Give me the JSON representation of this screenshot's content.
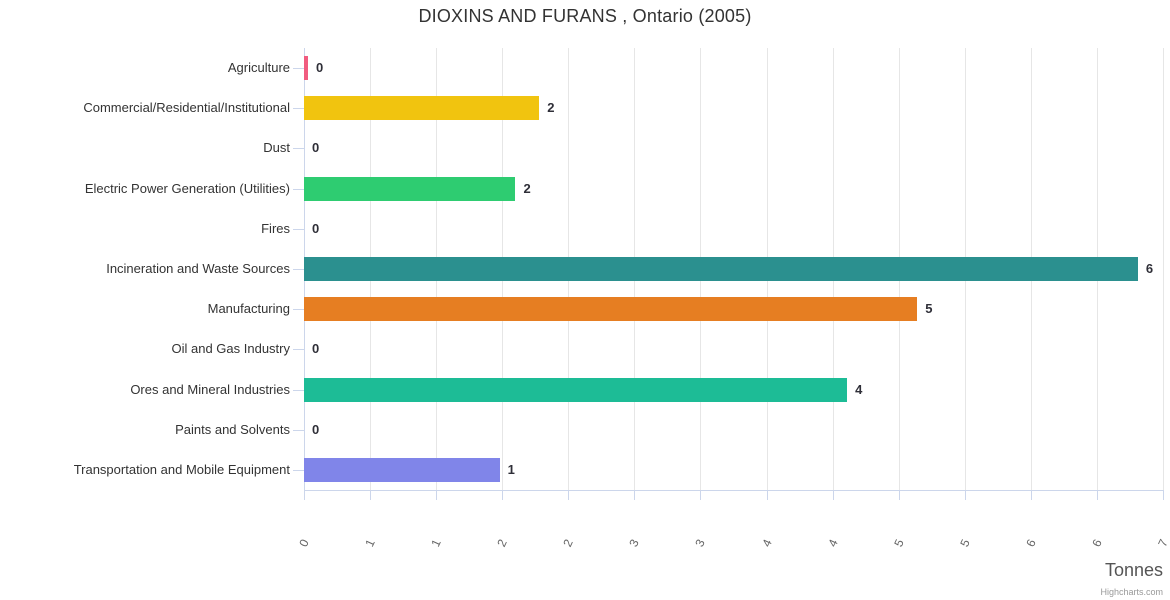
{
  "title": "DIOXINS AND FURANS , Ontario (2005)",
  "axis": {
    "x_title": "Tonnes"
  },
  "credits": "Highcharts.com",
  "chart_data": {
    "type": "bar",
    "orientation": "horizontal",
    "title": "DIOXINS AND FURANS , Ontario (2005)",
    "xlabel": "Tonnes",
    "ylabel": "",
    "xlim": [
      0,
      6.5
    ],
    "tick_interval": 0.5,
    "grid": true,
    "legend": false,
    "categories": [
      "Agriculture",
      "Commercial/Residential/Institutional",
      "Dust",
      "Electric Power Generation (Utilities)",
      "Fires",
      "Incineration and Waste Sources",
      "Manufacturing",
      "Oil and Gas Industry",
      "Ores and Mineral Industries",
      "Paints and Solvents",
      "Transportation and Mobile Equipment"
    ],
    "values": [
      0.03,
      1.78,
      0,
      1.6,
      0,
      6.31,
      4.64,
      0,
      4.11,
      0,
      1.48
    ],
    "labels": [
      "0",
      "2",
      "0",
      "2",
      "0",
      "6",
      "5",
      "0",
      "4",
      "0",
      "1"
    ],
    "colors": [
      "#f15c80",
      "#f1c40f",
      null,
      "#2ecc71",
      null,
      "#2b908f",
      "#e67e22",
      null,
      "#1dbc96",
      null,
      "#8085e9"
    ],
    "tick_labels": [
      "0",
      "1",
      "1",
      "2",
      "2",
      "3",
      "3",
      "4",
      "4",
      "5",
      "5",
      "6",
      "6",
      "7"
    ]
  }
}
